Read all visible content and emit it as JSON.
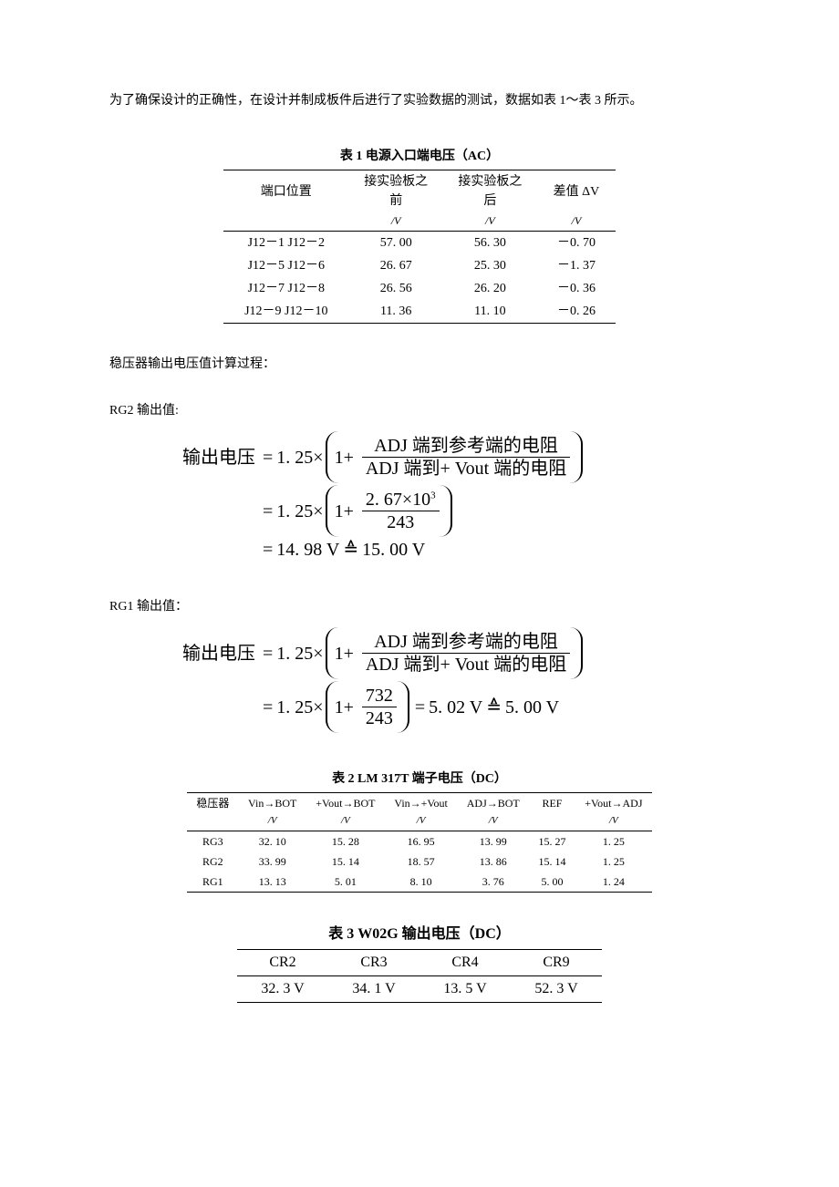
{
  "intro_para": "为了确保设计的正确性，在设计并制成板件后进行了实验数据的测试，数据如表 1～表 3 所示。",
  "table1": {
    "title": "表 1  电源入口端电压（AC）",
    "title_fontsize": 14,
    "columns": [
      "端口位置",
      "接实验板之前",
      "接实验板之后",
      "差值 ΔV"
    ],
    "unit_row": [
      "",
      "/V",
      "/V",
      "/V"
    ],
    "rows": [
      [
        "J12－1 J12－2",
        "57. 00",
        "56. 30",
        "－0. 70"
      ],
      [
        "J12－5 J12－6",
        "26. 67",
        "25. 30",
        "－1. 37"
      ],
      [
        "J12－7 J12－8",
        "26. 56",
        "26. 20",
        "－0. 36"
      ],
      [
        "J12－9 J12－10",
        "11. 36",
        "11. 10",
        "－0. 26"
      ]
    ],
    "col_widths": [
      "32%",
      "24%",
      "24%",
      "20%"
    ]
  },
  "calc_intro": "稳压器输出电压值计算过程：",
  "rg2_label": "RG2 输出值:",
  "rg1_label": "RG1 输出值：",
  "formula_common": {
    "lhs": "输出电压",
    "const": "1. 25",
    "frac_num_text": "ADJ 端到参考端的电阻",
    "frac_den_text": "ADJ 端到+ Vout 端的电阻"
  },
  "rg2_formula": {
    "num2": "2. 67×10",
    "num2_exp": "3",
    "den2": "243",
    "result": "14. 98 V",
    "approx": "15. 00 V"
  },
  "rg1_formula": {
    "num2": "732",
    "den2": "243",
    "result": "5. 02 V",
    "approx": "5. 00 V"
  },
  "table2": {
    "title": "表 2  LM 317T 端子电压（DC）",
    "title_fontsize": 14,
    "columns": [
      "稳压器",
      "Vin→BOT",
      "+Vout→BOT",
      "Vin→+Vout",
      "ADJ→BOT",
      "REF",
      "+Vout→ADJ"
    ],
    "unit_row": [
      "",
      "/V",
      "/V",
      "/V",
      "/V",
      "",
      "/V"
    ],
    "rows": [
      [
        "RG3",
        "32. 10",
        "15. 28",
        "16. 95",
        "13. 99",
        "15. 27",
        "1. 25"
      ],
      [
        "RG2",
        "33. 99",
        "15. 14",
        "18. 57",
        "13. 86",
        "15. 14",
        "1. 25"
      ],
      [
        "RG1",
        "13. 13",
        "5. 01",
        "8. 10",
        "3. 76",
        "5. 00",
        "1. 24"
      ]
    ]
  },
  "table3": {
    "title": "表 3  W02G 输出电压（DC）",
    "title_fontsize": 16,
    "columns": [
      "CR2",
      "CR3",
      "CR4",
      "CR9"
    ],
    "rows": [
      [
        "32. 3 V",
        "34. 1 V",
        "13. 5 V",
        "52. 3 V"
      ]
    ]
  },
  "colors": {
    "text": "#000000",
    "background": "#ffffff",
    "rule": "#000000"
  }
}
